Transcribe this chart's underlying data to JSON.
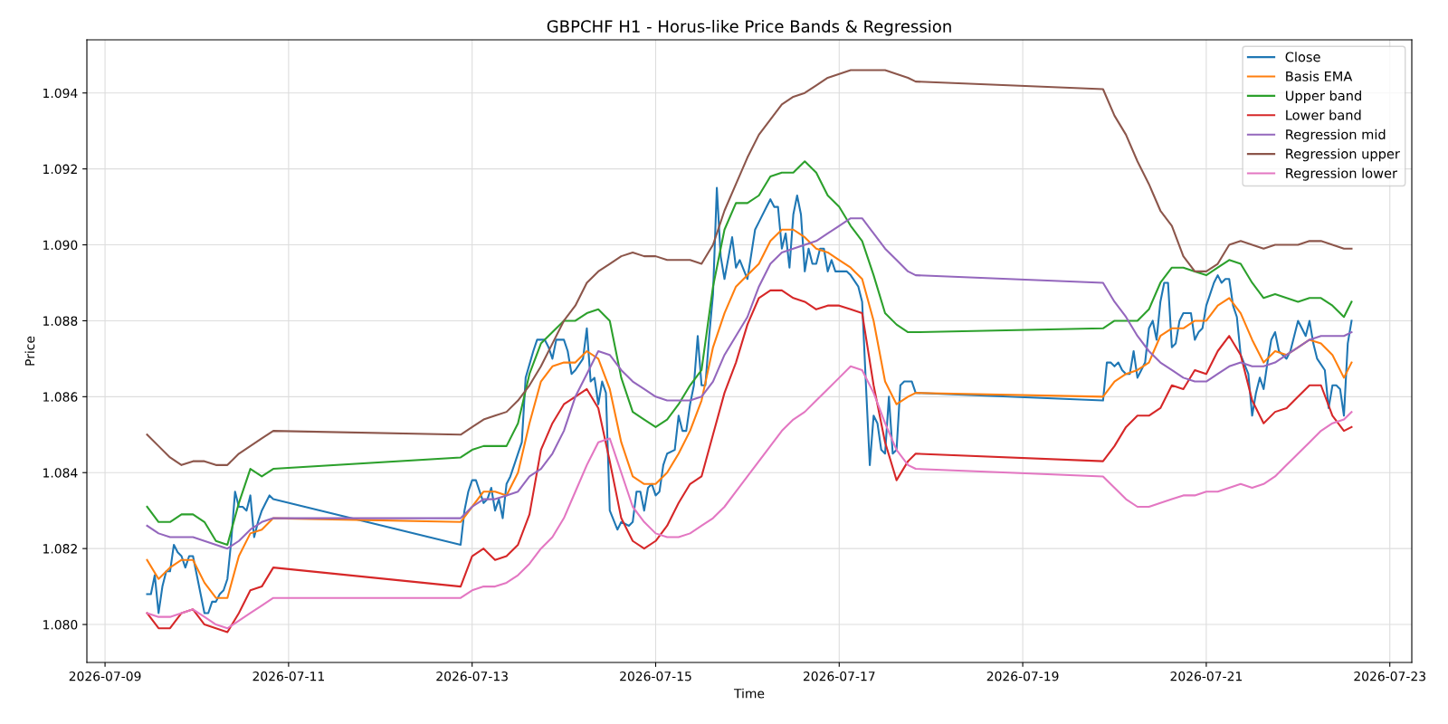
{
  "chart_data": {
    "type": "line",
    "title": "GBPCHF H1 - Horus-like Price Bands & Regression",
    "xlabel": "Time",
    "ylabel": "Price",
    "xlim": [
      "2026-07-08T19:15",
      "2026-07-23T05:45"
    ],
    "xticks": [
      "2026-07-09",
      "2026-07-11",
      "2026-07-13",
      "2026-07-15",
      "2026-07-17",
      "2026-07-19",
      "2026-07-21",
      "2026-07-23"
    ],
    "ylim": [
      1.079,
      1.0954
    ],
    "yticks": [
      {
        "value": 1.08,
        "label": "1.080"
      },
      {
        "value": 1.082,
        "label": "1.082"
      },
      {
        "value": 1.084,
        "label": "1.084"
      },
      {
        "value": 1.086,
        "label": "1.086"
      },
      {
        "value": 1.088,
        "label": "1.088"
      },
      {
        "value": 1.09,
        "label": "1.090"
      },
      {
        "value": 1.092,
        "label": "1.092"
      },
      {
        "value": 1.094,
        "label": "1.094"
      }
    ],
    "grid": true,
    "legend": "top right",
    "line_style": "solid",
    "marker": "none",
    "x": [
      "2026-07-09T11:00",
      "2026-07-09T14:00",
      "2026-07-09T17:00",
      "2026-07-09T20:00",
      "2026-07-09T23:00",
      "2026-07-10T02:00",
      "2026-07-10T05:00",
      "2026-07-10T08:00",
      "2026-07-10T11:00",
      "2026-07-10T14:00",
      "2026-07-10T17:00",
      "2026-07-10T20:00",
      "2026-07-12T21:00",
      "2026-07-13T00:00",
      "2026-07-13T03:00",
      "2026-07-13T06:00",
      "2026-07-13T09:00",
      "2026-07-13T12:00",
      "2026-07-13T15:00",
      "2026-07-13T18:00",
      "2026-07-13T21:00",
      "2026-07-14T00:00",
      "2026-07-14T03:00",
      "2026-07-14T06:00",
      "2026-07-14T09:00",
      "2026-07-14T12:00",
      "2026-07-14T15:00",
      "2026-07-14T18:00",
      "2026-07-14T21:00",
      "2026-07-15T00:00",
      "2026-07-15T03:00",
      "2026-07-15T06:00",
      "2026-07-15T09:00",
      "2026-07-15T12:00",
      "2026-07-15T15:00",
      "2026-07-15T18:00",
      "2026-07-15T21:00",
      "2026-07-16T00:00",
      "2026-07-16T03:00",
      "2026-07-16T06:00",
      "2026-07-16T09:00",
      "2026-07-16T12:00",
      "2026-07-16T15:00",
      "2026-07-16T18:00",
      "2026-07-16T21:00",
      "2026-07-17T00:00",
      "2026-07-17T03:00",
      "2026-07-17T06:00",
      "2026-07-17T09:00",
      "2026-07-17T12:00",
      "2026-07-17T15:00",
      "2026-07-17T18:00",
      "2026-07-17T20:00",
      "2026-07-19T21:00",
      "2026-07-20T00:00",
      "2026-07-20T03:00",
      "2026-07-20T06:00",
      "2026-07-20T09:00",
      "2026-07-20T12:00",
      "2026-07-20T15:00",
      "2026-07-20T18:00",
      "2026-07-20T21:00",
      "2026-07-21T00:00",
      "2026-07-21T03:00",
      "2026-07-21T06:00",
      "2026-07-21T09:00",
      "2026-07-21T12:00",
      "2026-07-21T15:00",
      "2026-07-21T18:00",
      "2026-07-21T21:00",
      "2026-07-22T00:00",
      "2026-07-22T03:00",
      "2026-07-22T06:00",
      "2026-07-22T09:00",
      "2026-07-22T12:00",
      "2026-07-22T14:00"
    ],
    "series": [
      {
        "name": "Close",
        "color": "#1f77b4",
        "x": [
          "2026-07-09T11:00",
          "2026-07-09T12:00",
          "2026-07-09T13:00",
          "2026-07-09T14:00",
          "2026-07-09T15:00",
          "2026-07-09T16:00",
          "2026-07-09T17:00",
          "2026-07-09T18:00",
          "2026-07-09T19:00",
          "2026-07-09T20:00",
          "2026-07-09T21:00",
          "2026-07-09T22:00",
          "2026-07-09T23:00",
          "2026-07-10T00:00",
          "2026-07-10T01:00",
          "2026-07-10T02:00",
          "2026-07-10T03:00",
          "2026-07-10T04:00",
          "2026-07-10T05:00",
          "2026-07-10T06:00",
          "2026-07-10T07:00",
          "2026-07-10T08:00",
          "2026-07-10T09:00",
          "2026-07-10T10:00",
          "2026-07-10T11:00",
          "2026-07-10T12:00",
          "2026-07-10T13:00",
          "2026-07-10T14:00",
          "2026-07-10T15:00",
          "2026-07-10T16:00",
          "2026-07-10T17:00",
          "2026-07-10T18:00",
          "2026-07-10T19:00",
          "2026-07-10T20:00",
          "2026-07-12T21:00",
          "2026-07-12T22:00",
          "2026-07-12T23:00",
          "2026-07-13T00:00",
          "2026-07-13T01:00",
          "2026-07-13T02:00",
          "2026-07-13T03:00",
          "2026-07-13T04:00",
          "2026-07-13T05:00",
          "2026-07-13T06:00",
          "2026-07-13T07:00",
          "2026-07-13T08:00",
          "2026-07-13T09:00",
          "2026-07-13T10:00",
          "2026-07-13T11:00",
          "2026-07-13T13:00",
          "2026-07-13T14:00",
          "2026-07-13T16:00",
          "2026-07-13T17:00",
          "2026-07-13T19:00",
          "2026-07-13T20:00",
          "2026-07-13T21:00",
          "2026-07-13T22:00",
          "2026-07-14T00:00",
          "2026-07-14T01:00",
          "2026-07-14T02:00",
          "2026-07-14T03:00",
          "2026-07-14T05:00",
          "2026-07-14T06:00",
          "2026-07-14T07:00",
          "2026-07-14T08:00",
          "2026-07-14T09:00",
          "2026-07-14T10:00",
          "2026-07-14T11:00",
          "2026-07-14T12:00",
          "2026-07-14T14:00",
          "2026-07-14T15:00",
          "2026-07-14T17:00",
          "2026-07-14T18:00",
          "2026-07-14T19:00",
          "2026-07-14T20:00",
          "2026-07-14T21:00",
          "2026-07-14T22:00",
          "2026-07-14T23:00",
          "2026-07-15T00:00",
          "2026-07-15T01:00",
          "2026-07-15T02:00",
          "2026-07-15T03:00",
          "2026-07-15T05:00",
          "2026-07-15T06:00",
          "2026-07-15T07:00",
          "2026-07-15T08:00",
          "2026-07-15T09:00",
          "2026-07-15T10:00",
          "2026-07-15T11:00",
          "2026-07-15T12:00",
          "2026-07-15T13:00",
          "2026-07-15T14:00",
          "2026-07-15T15:00",
          "2026-07-15T16:00",
          "2026-07-15T17:00",
          "2026-07-15T18:00",
          "2026-07-15T20:00",
          "2026-07-15T21:00",
          "2026-07-15T22:00",
          "2026-07-16T00:00",
          "2026-07-16T02:00",
          "2026-07-16T03:00",
          "2026-07-16T05:00",
          "2026-07-16T06:00",
          "2026-07-16T07:00",
          "2026-07-16T08:00",
          "2026-07-16T09:00",
          "2026-07-16T10:00",
          "2026-07-16T11:00",
          "2026-07-16T12:00",
          "2026-07-16T13:00",
          "2026-07-16T14:00",
          "2026-07-16T15:00",
          "2026-07-16T16:00",
          "2026-07-16T17:00",
          "2026-07-16T18:00",
          "2026-07-16T19:00",
          "2026-07-16T20:00",
          "2026-07-16T21:00",
          "2026-07-16T22:00",
          "2026-07-16T23:00",
          "2026-07-17T01:00",
          "2026-07-17T02:00",
          "2026-07-17T03:00",
          "2026-07-17T05:00",
          "2026-07-17T06:00",
          "2026-07-17T07:00",
          "2026-07-17T08:00",
          "2026-07-17T09:00",
          "2026-07-17T10:00",
          "2026-07-17T11:00",
          "2026-07-17T12:00",
          "2026-07-17T13:00",
          "2026-07-17T14:00",
          "2026-07-17T15:00",
          "2026-07-17T16:00",
          "2026-07-17T17:00",
          "2026-07-17T19:00",
          "2026-07-17T20:00",
          "2026-07-19T21:00",
          "2026-07-19T22:00",
          "2026-07-19T23:00",
          "2026-07-20T00:00",
          "2026-07-20T01:00",
          "2026-07-20T02:00",
          "2026-07-20T03:00",
          "2026-07-20T04:00",
          "2026-07-20T05:00",
          "2026-07-20T06:00",
          "2026-07-20T07:00",
          "2026-07-20T08:00",
          "2026-07-20T09:00",
          "2026-07-20T10:00",
          "2026-07-20T11:00",
          "2026-07-20T12:00",
          "2026-07-20T13:00",
          "2026-07-20T14:00",
          "2026-07-20T15:00",
          "2026-07-20T16:00",
          "2026-07-20T17:00",
          "2026-07-20T18:00",
          "2026-07-20T20:00",
          "2026-07-20T21:00",
          "2026-07-20T22:00",
          "2026-07-20T23:00",
          "2026-07-21T00:00",
          "2026-07-21T01:00",
          "2026-07-21T02:00",
          "2026-07-21T03:00",
          "2026-07-21T04:00",
          "2026-07-21T05:00",
          "2026-07-21T06:00",
          "2026-07-21T07:00",
          "2026-07-21T08:00",
          "2026-07-21T09:00",
          "2026-07-21T11:00",
          "2026-07-21T12:00",
          "2026-07-21T13:00",
          "2026-07-21T14:00",
          "2026-07-21T15:00",
          "2026-07-21T16:00",
          "2026-07-21T17:00",
          "2026-07-21T18:00",
          "2026-07-21T19:00",
          "2026-07-21T20:00",
          "2026-07-21T21:00",
          "2026-07-21T22:00",
          "2026-07-21T23:00",
          "2026-07-22T00:00",
          "2026-07-22T01:00",
          "2026-07-22T02:00",
          "2026-07-22T03:00",
          "2026-07-22T04:00",
          "2026-07-22T05:00",
          "2026-07-22T07:00",
          "2026-07-22T08:00",
          "2026-07-22T09:00",
          "2026-07-22T10:00",
          "2026-07-22T11:00",
          "2026-07-22T12:00",
          "2026-07-22T13:00",
          "2026-07-22T14:00"
        ],
        "values": [
          1.0808,
          1.0808,
          1.0813,
          1.0803,
          1.081,
          1.0814,
          1.0814,
          1.0821,
          1.0819,
          1.0818,
          1.0815,
          1.0818,
          1.0818,
          1.0813,
          1.0808,
          1.0803,
          1.0803,
          1.0806,
          1.0806,
          1.0808,
          1.0809,
          1.0812,
          1.0822,
          1.0835,
          1.0831,
          1.0831,
          1.083,
          1.0834,
          1.0823,
          1.0827,
          1.083,
          1.0832,
          1.0834,
          1.0833,
          1.0821,
          1.083,
          1.0835,
          1.0838,
          1.0838,
          1.0835,
          1.0832,
          1.0833,
          1.0836,
          1.083,
          1.0833,
          1.0828,
          1.0837,
          1.0839,
          1.0842,
          1.0848,
          1.0865,
          1.0872,
          1.0875,
          1.0875,
          1.0873,
          1.087,
          1.0875,
          1.0875,
          1.0872,
          1.0866,
          1.0867,
          1.087,
          1.0878,
          1.0864,
          1.0865,
          1.0858,
          1.0864,
          1.0861,
          1.083,
          1.0825,
          1.0827,
          1.0826,
          1.0827,
          1.0835,
          1.0835,
          1.083,
          1.0836,
          1.0837,
          1.0834,
          1.0835,
          1.0842,
          1.0845,
          1.0846,
          1.0855,
          1.0851,
          1.0851,
          1.0858,
          1.0863,
          1.0876,
          1.0863,
          1.0863,
          1.0876,
          1.0887,
          1.0915,
          1.0897,
          1.0891,
          1.0902,
          1.0894,
          1.0896,
          1.0891,
          1.0904,
          1.0906,
          1.091,
          1.0912,
          1.091,
          1.091,
          1.0899,
          1.0903,
          1.0894,
          1.0908,
          1.0913,
          1.0908,
          1.0893,
          1.0899,
          1.0895,
          1.0895,
          1.0899,
          1.0899,
          1.0893,
          1.0896,
          1.0893,
          1.0893,
          1.0893,
          1.0892,
          1.0889,
          1.0885,
          1.0863,
          1.0842,
          1.0855,
          1.0853,
          1.0846,
          1.0845,
          1.086,
          1.0845,
          1.0846,
          1.0863,
          1.0864,
          1.0864,
          1.0861,
          1.0859,
          1.0869,
          1.0869,
          1.0868,
          1.0869,
          1.0867,
          1.0866,
          1.0866,
          1.0872,
          1.0865,
          1.0867,
          1.0869,
          1.0878,
          1.088,
          1.0875,
          1.0885,
          1.089,
          1.089,
          1.0873,
          1.0874,
          1.088,
          1.0882,
          1.0882,
          1.0875,
          1.0877,
          1.0878,
          1.0884,
          1.0887,
          1.089,
          1.0892,
          1.089,
          1.0891,
          1.0891,
          1.0884,
          1.0881,
          1.0871,
          1.0866,
          1.0855,
          1.0861,
          1.0865,
          1.0862,
          1.0869,
          1.0875,
          1.0877,
          1.0872,
          1.0871,
          1.087,
          1.0872,
          1.0876,
          1.088,
          1.0878,
          1.0876,
          1.088,
          1.0874,
          1.087,
          1.0867,
          1.0857,
          1.0863,
          1.0863,
          1.0862,
          1.0855,
          1.0874,
          1.088
        ]
      },
      {
        "name": "Basis EMA",
        "color": "#ff7f0e",
        "values": [
          1.0817,
          1.0812,
          1.0815,
          1.0817,
          1.0817,
          1.0811,
          1.0807,
          1.0807,
          1.0818,
          1.0824,
          1.0825,
          1.0828,
          1.0827,
          1.0831,
          1.0835,
          1.0835,
          1.0834,
          1.084,
          1.0853,
          1.0864,
          1.0868,
          1.0869,
          1.0869,
          1.0872,
          1.087,
          1.0862,
          1.0848,
          1.0839,
          1.0837,
          1.0837,
          1.084,
          1.0845,
          1.0851,
          1.0859,
          1.0873,
          1.0882,
          1.0889,
          1.0892,
          1.0895,
          1.0901,
          1.0904,
          1.0904,
          1.0902,
          1.0899,
          1.0898,
          1.0896,
          1.0894,
          1.0891,
          1.088,
          1.0864,
          1.0858,
          1.086,
          1.0861,
          1.086,
          1.0864,
          1.0866,
          1.0867,
          1.0869,
          1.0876,
          1.0878,
          1.0878,
          1.088,
          1.088,
          1.0884,
          1.0886,
          1.0882,
          1.0875,
          1.0869,
          1.0872,
          1.0871,
          1.0873,
          1.0875,
          1.0874,
          1.0871,
          1.0865,
          1.0869
        ]
      },
      {
        "name": "Upper band",
        "color": "#2ca02c",
        "values": [
          1.0831,
          1.0827,
          1.0827,
          1.0829,
          1.0829,
          1.0827,
          1.0822,
          1.0821,
          1.0832,
          1.0841,
          1.0839,
          1.0841,
          1.0844,
          1.0846,
          1.0847,
          1.0847,
          1.0847,
          1.0853,
          1.0866,
          1.0874,
          1.0877,
          1.088,
          1.088,
          1.0882,
          1.0883,
          1.088,
          1.0865,
          1.0856,
          1.0854,
          1.0852,
          1.0854,
          1.0858,
          1.0863,
          1.0867,
          1.0889,
          1.0904,
          1.0911,
          1.0911,
          1.0913,
          1.0918,
          1.0919,
          1.0919,
          1.0922,
          1.0919,
          1.0913,
          1.091,
          1.0905,
          1.0901,
          1.0892,
          1.0882,
          1.0879,
          1.0877,
          1.0877,
          1.0878,
          1.088,
          1.088,
          1.088,
          1.0883,
          1.089,
          1.0894,
          1.0894,
          1.0893,
          1.0892,
          1.0894,
          1.0896,
          1.0895,
          1.089,
          1.0886,
          1.0887,
          1.0886,
          1.0885,
          1.0886,
          1.0886,
          1.0884,
          1.0881,
          1.0885
        ]
      },
      {
        "name": "Lower band",
        "color": "#d62728",
        "values": [
          1.0803,
          1.0799,
          1.0799,
          1.0803,
          1.0804,
          1.08,
          1.0799,
          1.0798,
          1.0803,
          1.0809,
          1.081,
          1.0815,
          1.081,
          1.0818,
          1.082,
          1.0817,
          1.0818,
          1.0821,
          1.0829,
          1.0846,
          1.0853,
          1.0858,
          1.086,
          1.0862,
          1.0857,
          1.0843,
          1.0828,
          1.0822,
          1.082,
          1.0822,
          1.0826,
          1.0832,
          1.0837,
          1.0839,
          1.085,
          1.0861,
          1.0869,
          1.0879,
          1.0886,
          1.0888,
          1.0888,
          1.0886,
          1.0885,
          1.0883,
          1.0884,
          1.0884,
          1.0883,
          1.0882,
          1.0863,
          1.0848,
          1.0838,
          1.0843,
          1.0845,
          1.0843,
          1.0847,
          1.0852,
          1.0855,
          1.0855,
          1.0857,
          1.0863,
          1.0862,
          1.0867,
          1.0866,
          1.0872,
          1.0876,
          1.0871,
          1.0859,
          1.0853,
          1.0856,
          1.0857,
          1.086,
          1.0863,
          1.0863,
          1.0855,
          1.0851,
          1.0852
        ]
      },
      {
        "name": "Regression mid",
        "color": "#9467bd",
        "values": [
          1.0826,
          1.0824,
          1.0823,
          1.0823,
          1.0823,
          1.0822,
          1.0821,
          1.082,
          1.0822,
          1.0825,
          1.0827,
          1.0828,
          1.0828,
          1.0831,
          1.0833,
          1.0833,
          1.0834,
          1.0835,
          1.0839,
          1.0841,
          1.0845,
          1.0851,
          1.086,
          1.0866,
          1.0872,
          1.0871,
          1.0867,
          1.0864,
          1.0862,
          1.086,
          1.0859,
          1.0859,
          1.0859,
          1.086,
          1.0864,
          1.0871,
          1.0876,
          1.0881,
          1.0889,
          1.0895,
          1.0898,
          1.0899,
          1.09,
          1.0901,
          1.0903,
          1.0905,
          1.0907,
          1.0907,
          1.0903,
          1.0899,
          1.0896,
          1.0893,
          1.0892,
          1.089,
          1.0885,
          1.0881,
          1.0876,
          1.0872,
          1.0869,
          1.0867,
          1.0865,
          1.0864,
          1.0864,
          1.0866,
          1.0868,
          1.0869,
          1.0868,
          1.0868,
          1.0869,
          1.0871,
          1.0873,
          1.0875,
          1.0876,
          1.0876,
          1.0876,
          1.0877
        ]
      },
      {
        "name": "Regression upper",
        "color": "#8c564b",
        "values": [
          1.085,
          1.0847,
          1.0844,
          1.0842,
          1.0843,
          1.0843,
          1.0842,
          1.0842,
          1.0845,
          1.0847,
          1.0849,
          1.0851,
          1.085,
          1.0852,
          1.0854,
          1.0855,
          1.0856,
          1.0859,
          1.0863,
          1.0868,
          1.0874,
          1.088,
          1.0884,
          1.089,
          1.0893,
          1.0895,
          1.0897,
          1.0898,
          1.0897,
          1.0897,
          1.0896,
          1.0896,
          1.0896,
          1.0895,
          1.09,
          1.0909,
          1.0916,
          1.0923,
          1.0929,
          1.0933,
          1.0937,
          1.0939,
          1.094,
          1.0942,
          1.0944,
          1.0945,
          1.0946,
          1.0946,
          1.0946,
          1.0946,
          1.0945,
          1.0944,
          1.0943,
          1.0941,
          1.0934,
          1.0929,
          1.0922,
          1.0916,
          1.0909,
          1.0905,
          1.0897,
          1.0893,
          1.0893,
          1.0895,
          1.09,
          1.0901,
          1.09,
          1.0899,
          1.09,
          1.09,
          1.09,
          1.0901,
          1.0901,
          1.09,
          1.0899,
          1.0899
        ]
      },
      {
        "name": "Regression lower",
        "color": "#e377c2",
        "values": [
          1.0803,
          1.0802,
          1.0802,
          1.0803,
          1.0804,
          1.0802,
          1.08,
          1.0799,
          1.0801,
          1.0803,
          1.0805,
          1.0807,
          1.0807,
          1.0809,
          1.081,
          1.081,
          1.0811,
          1.0813,
          1.0816,
          1.082,
          1.0823,
          1.0828,
          1.0835,
          1.0842,
          1.0848,
          1.0849,
          1.084,
          1.0831,
          1.0827,
          1.0824,
          1.0823,
          1.0823,
          1.0824,
          1.0826,
          1.0828,
          1.0831,
          1.0835,
          1.0839,
          1.0843,
          1.0847,
          1.0851,
          1.0854,
          1.0856,
          1.0859,
          1.0862,
          1.0865,
          1.0868,
          1.0867,
          1.0861,
          1.0853,
          1.0846,
          1.0842,
          1.0841,
          1.0839,
          1.0836,
          1.0833,
          1.0831,
          1.0831,
          1.0832,
          1.0833,
          1.0834,
          1.0834,
          1.0835,
          1.0835,
          1.0836,
          1.0837,
          1.0836,
          1.0837,
          1.0839,
          1.0842,
          1.0845,
          1.0848,
          1.0851,
          1.0853,
          1.0854,
          1.0856
        ]
      }
    ]
  }
}
